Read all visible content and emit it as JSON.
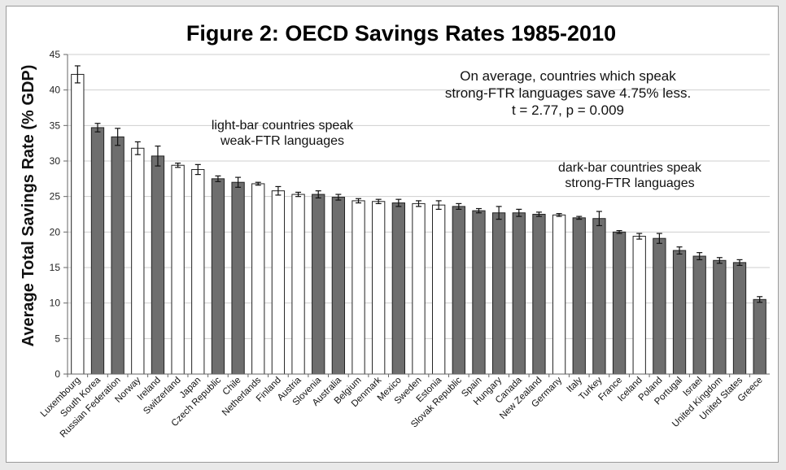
{
  "chart_data": {
    "type": "bar",
    "title": "Figure 2: OECD Savings Rates 1985-2010",
    "ylabel": "Average Total Savings Rate (% GDP)",
    "xlabel": "",
    "ylim": [
      0,
      45
    ],
    "yticks": [
      0,
      5,
      10,
      15,
      20,
      25,
      30,
      35,
      40,
      45
    ],
    "grid": true,
    "colors": {
      "light_bar": "#ffffff",
      "dark_bar": "#6e6e6e",
      "gridline": "#cfcfcf",
      "axis": "#666666"
    },
    "categories": [
      "Luxembourg",
      "South Korea",
      "Russian Federation",
      "Norway",
      "Ireland",
      "Switzerland",
      "Japan",
      "Czech Republic",
      "Chile",
      "Netherlands",
      "Finland",
      "Austria",
      "Slovenia",
      "Australia",
      "Belgium",
      "Denmark",
      "Mexico",
      "Sweden",
      "Estonia",
      "Slovak Republic",
      "Spain",
      "Hungary",
      "Canada",
      "New Zealand",
      "Germany",
      "Italy",
      "Turkey",
      "France",
      "Iceland",
      "Poland",
      "Portugal",
      "Israel",
      "United Kingdom",
      "United States",
      "Greece"
    ],
    "values": [
      42.2,
      34.7,
      33.4,
      31.8,
      30.7,
      29.4,
      28.8,
      27.5,
      27.0,
      26.8,
      25.8,
      25.3,
      25.3,
      24.9,
      24.4,
      24.3,
      24.1,
      24.0,
      23.8,
      23.6,
      23.0,
      22.7,
      22.7,
      22.5,
      22.4,
      22.0,
      21.9,
      20.0,
      19.4,
      19.1,
      17.4,
      16.6,
      16.0,
      15.7,
      10.5
    ],
    "errors": [
      1.2,
      0.6,
      1.2,
      0.9,
      1.4,
      0.3,
      0.7,
      0.4,
      0.7,
      0.2,
      0.6,
      0.3,
      0.5,
      0.4,
      0.3,
      0.3,
      0.5,
      0.4,
      0.6,
      0.4,
      0.3,
      0.9,
      0.5,
      0.3,
      0.2,
      0.2,
      1.0,
      0.2,
      0.4,
      0.7,
      0.5,
      0.5,
      0.4,
      0.4,
      0.4
    ],
    "group": [
      "weak",
      "strong",
      "strong",
      "weak",
      "strong",
      "weak",
      "weak",
      "strong",
      "strong",
      "weak",
      "weak",
      "weak",
      "strong",
      "strong",
      "weak",
      "weak",
      "strong",
      "weak",
      "weak",
      "strong",
      "strong",
      "strong",
      "strong",
      "strong",
      "weak",
      "strong",
      "strong",
      "strong",
      "weak",
      "strong",
      "strong",
      "strong",
      "strong",
      "strong",
      "strong"
    ],
    "annotations": {
      "stats": [
        "On average, countries which speak",
        "strong-FTR languages save 4.75% less.",
        "t = 2.77, p = 0.009"
      ],
      "light": [
        "light-bar countries speak",
        "weak-FTR languages"
      ],
      "dark": [
        "dark-bar countries speak",
        "strong-FTR languages"
      ]
    }
  }
}
